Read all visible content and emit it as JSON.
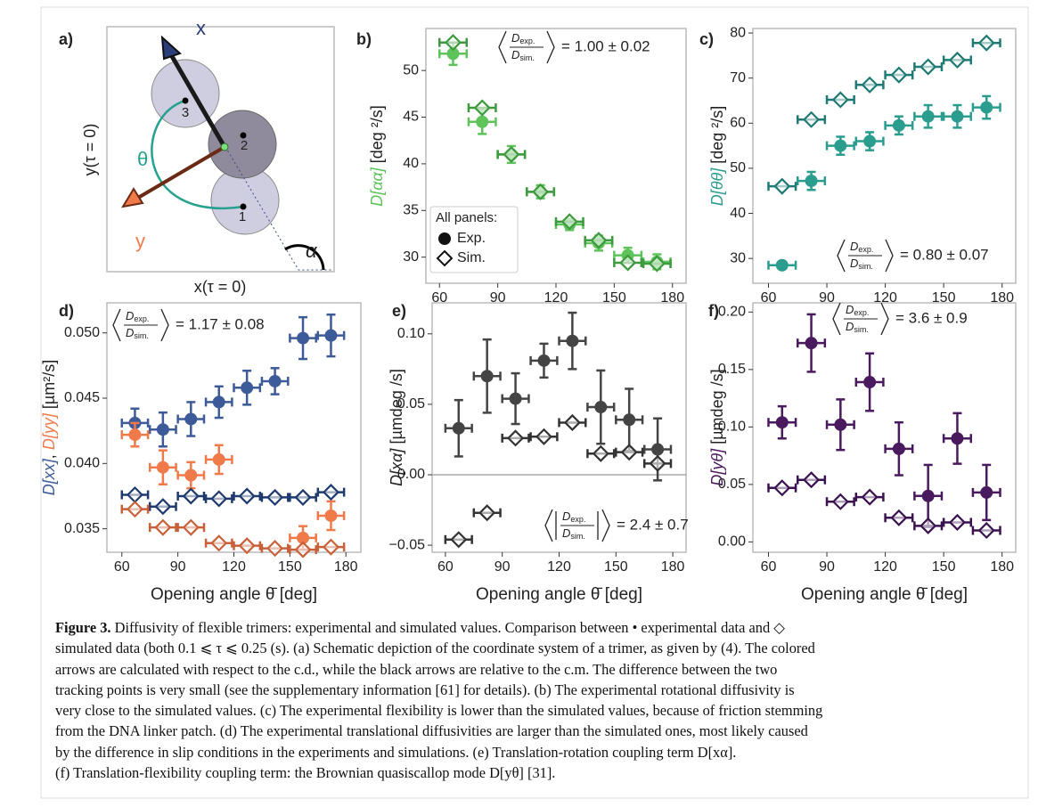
{
  "diagram": {
    "label": "a)",
    "axis_x": "x",
    "axis_y": "y",
    "angle_theta": "θ",
    "angle_alpha": "α",
    "particles": [
      "1",
      "2",
      "3"
    ],
    "ylabel": "y(τ = 0)",
    "xlabel": "x(τ = 0)"
  },
  "chart_data": [
    {
      "type": "scatter",
      "label": "b)",
      "x": [
        67,
        82,
        97,
        112,
        127,
        142,
        157,
        172
      ],
      "xlim": [
        53,
        187
      ],
      "xticks": [
        60,
        90,
        120,
        150,
        180
      ],
      "ylim": [
        27.2,
        54.5
      ],
      "yticks": [
        30,
        35,
        40,
        45,
        50
      ],
      "ylabel": [
        {
          "text": "D[αα]",
          "color": "#5ec35a"
        },
        {
          "text": " [deg ²/s]",
          "color": "#222222"
        }
      ],
      "annotation": {
        "symbol": "D",
        "num": "exp.",
        "den": "sim.",
        "value": "= 1.00 ± 0.02"
      },
      "legend": true,
      "legend_title": "All panels:",
      "series": [
        {
          "name": "Exp.",
          "marker": "o",
          "color": "#5ec35a",
          "values": [
            51.8,
            44.5,
            41.0,
            37.0,
            33.5,
            31.5,
            30.2,
            29.5
          ],
          "yerr": [
            1.2,
            1.3,
            0.9,
            0.7,
            0.6,
            0.8,
            0.8,
            0.8
          ],
          "xerr": [
            7,
            7,
            7,
            7,
            7,
            7,
            7,
            7
          ]
        },
        {
          "name": "Sim.",
          "marker": "d",
          "color": "#3e9a3e",
          "values": [
            53.0,
            46.0,
            41.0,
            37.0,
            33.8,
            31.8,
            29.4,
            29.3
          ],
          "xerr": [
            7,
            7,
            7,
            7,
            7,
            7,
            7,
            7
          ]
        }
      ]
    },
    {
      "type": "scatter",
      "label": "c)",
      "x": [
        67,
        82,
        97,
        112,
        127,
        142,
        157,
        172
      ],
      "xlim": [
        52,
        187
      ],
      "xticks": [
        60,
        90,
        120,
        150,
        180
      ],
      "ylim": [
        24.5,
        81
      ],
      "yticks": [
        30,
        40,
        50,
        60,
        70,
        80
      ],
      "ylabel": [
        {
          "text": "D[θθ]",
          "color": "#2a9d8f"
        },
        {
          "text": " [deg ²/s]",
          "color": "#222222"
        }
      ],
      "annotation": {
        "symbol": "D",
        "num": "exp.",
        "den": "sim.",
        "value": "= 0.80 ± 0.07"
      },
      "legend": false,
      "series": [
        {
          "marker": "o",
          "color": "#2a9d8f",
          "values": [
            28.5,
            47.2,
            55.0,
            56.0,
            59.5,
            61.5,
            61.5,
            63.5
          ],
          "yerr": [
            0.5,
            2.0,
            2.0,
            2.0,
            2.0,
            2.5,
            2.5,
            2.5
          ],
          "xerr": [
            7,
            7,
            7,
            7,
            7,
            7,
            7,
            7
          ]
        },
        {
          "marker": "d",
          "color": "#1f7a73",
          "values": [
            46.0,
            60.8,
            65.2,
            68.5,
            70.7,
            72.5,
            74.0,
            77.8
          ],
          "xerr": [
            7,
            7,
            7,
            7,
            7,
            7,
            7,
            7
          ]
        }
      ]
    },
    {
      "type": "scatter",
      "label": "d)",
      "x": [
        67,
        82,
        97,
        112,
        127,
        142,
        157,
        172
      ],
      "xlim": [
        52,
        188
      ],
      "xticks": [
        60,
        90,
        120,
        150,
        180
      ],
      "ylim": [
        0.0332,
        0.0523
      ],
      "yticks": [
        0.035,
        {
          "value": 0.04,
          "label": "0.040"
        },
        0.045,
        {
          "value": 0.05,
          "label": "0.050"
        }
      ],
      "ylabel": [
        {
          "text": "D[xx]",
          "color": "#3d5a99"
        },
        {
          "text": ", ",
          "color": "#222222"
        },
        {
          "text": "D[yy]",
          "color": "#f07a4a"
        },
        {
          "text": " [µm²/s]",
          "color": "#222222"
        }
      ],
      "xlabel": "Opening angle θ̄ [deg]",
      "annotation": {
        "symbol": "D",
        "num": "exp.",
        "den": "sim.",
        "value": "= 1.17 ± 0.08"
      },
      "legend": false,
      "series": [
        {
          "marker": "o",
          "color": "#3d5a99",
          "values": [
            0.0431,
            0.0426,
            0.0434,
            0.0447,
            0.0458,
            0.0463,
            0.0496,
            0.0498
          ],
          "yerr": [
            0.0011,
            0.0013,
            0.0013,
            0.0012,
            0.0013,
            0.001,
            0.0016,
            0.0016
          ],
          "xerr": [
            7,
            7,
            7,
            7,
            7,
            7,
            7,
            7
          ]
        },
        {
          "marker": "o",
          "color": "#f07a4a",
          "values": [
            0.0422,
            0.0397,
            0.0391,
            0.0403,
            null,
            null,
            0.0343,
            0.036
          ],
          "yerr": [
            0.0009,
            0.0013,
            0.001,
            0.0011,
            null,
            null,
            0.0009,
            0.0011
          ],
          "xerr": [
            7,
            7,
            7,
            7,
            null,
            null,
            7,
            7
          ]
        },
        {
          "marker": "d",
          "color": "#1f3a6e",
          "values": [
            0.0376,
            0.0367,
            0.0375,
            0.0373,
            0.0375,
            0.0374,
            0.0374,
            0.0378
          ],
          "xerr": [
            7,
            7,
            7,
            7,
            7,
            7,
            7,
            7
          ]
        },
        {
          "marker": "d",
          "color": "#c8603a",
          "values": [
            0.0365,
            0.0351,
            0.0351,
            0.0339,
            0.0337,
            0.0335,
            0.0334,
            0.0336
          ],
          "xerr": [
            7,
            7,
            7,
            7,
            7,
            7,
            7,
            7
          ]
        }
      ]
    },
    {
      "type": "scatter",
      "label": "e)",
      "x": [
        67,
        82,
        97,
        112,
        127,
        142,
        157,
        172
      ],
      "xlim": [
        53,
        187
      ],
      "xticks": [
        60,
        90,
        120,
        150,
        180
      ],
      "ylim": [
        -0.055,
        0.122
      ],
      "yticks": [
        {
          "value": -0.05,
          "label": "−0.05"
        },
        {
          "value": 0,
          "label": "0.00"
        },
        0.05,
        {
          "value": 0.1,
          "label": "0.10"
        }
      ],
      "hline": 0,
      "ylabel": [
        {
          "text": "D[xα]",
          "color": "#222222"
        },
        {
          "text": " [µmdeg /s]",
          "color": "#222222"
        }
      ],
      "xlabel": "Opening angle θ̄ [deg]",
      "annotation": {
        "symbol": "D",
        "num": "exp.",
        "den": "sim.",
        "value": "= 2.4 ± 0.7",
        "absolute": true
      },
      "legend": false,
      "series": [
        {
          "marker": "o",
          "color": "#444444",
          "values": [
            0.033,
            0.07,
            0.054,
            0.081,
            0.095,
            0.048,
            0.039,
            0.018
          ],
          "yerr": [
            0.02,
            0.026,
            0.018,
            0.012,
            0.02,
            0.026,
            0.022,
            0.022
          ],
          "xerr": [
            7,
            7,
            7,
            7,
            7,
            7,
            7,
            7
          ]
        },
        {
          "marker": "d",
          "color": "#333333",
          "values": [
            -0.046,
            -0.027,
            0.026,
            0.027,
            0.037,
            0.015,
            0.016,
            0.008
          ],
          "xerr": [
            7,
            7,
            7,
            7,
            7,
            7,
            7,
            7
          ]
        }
      ]
    },
    {
      "type": "scatter",
      "label": "f)",
      "x": [
        67,
        82,
        97,
        112,
        127,
        142,
        157,
        172
      ],
      "xlim": [
        52,
        187
      ],
      "xticks": [
        60,
        90,
        120,
        150,
        180
      ],
      "ylim": [
        -0.009,
        0.208
      ],
      "yticks": [
        {
          "value": 0,
          "label": "0.00"
        },
        0.05,
        {
          "value": 0.1,
          "label": "0.10"
        },
        0.15,
        {
          "value": 0.2,
          "label": "0.20"
        }
      ],
      "ylabel": [
        {
          "text": "D[yθ]",
          "color": "#4a1a5e"
        },
        {
          "text": " [µmdeg /s]",
          "color": "#222222"
        }
      ],
      "xlabel": "Opening angle θ̄ [deg]",
      "annotation": {
        "symbol": "D",
        "num": "exp.",
        "den": "sim.",
        "value": "= 3.6 ± 0.9"
      },
      "legend": false,
      "series": [
        {
          "marker": "o",
          "color": "#4a1a5e",
          "values": [
            0.104,
            0.173,
            0.102,
            0.139,
            0.081,
            0.04,
            0.09,
            0.043
          ],
          "yerr": [
            0.014,
            0.025,
            0.022,
            0.025,
            0.023,
            0.027,
            0.022,
            0.024
          ],
          "xerr": [
            7,
            7,
            7,
            7,
            7,
            7,
            7,
            7
          ]
        },
        {
          "marker": "d",
          "color": "#3a1250",
          "values": [
            0.047,
            0.054,
            0.035,
            0.039,
            0.021,
            0.014,
            0.017,
            0.01
          ],
          "xerr": [
            7,
            7,
            7,
            7,
            7,
            7,
            7,
            7
          ]
        }
      ]
    }
  ],
  "caption": {
    "label": "Figure 3.",
    "lines": [
      " Diffusivity of flexible trimers: experimental and simulated values. Comparison between • experimental data and ◇",
      "simulated data (both 0.1 ⩽ τ ⩽ 0.25 (s). (a) Schematic depiction of the coordinate system of a trimer, as given by (4). The colored",
      "arrows are calculated with respect to the c.d., while the black arrows are relative to the c.m. The difference between the two",
      "tracking points is very small (see the supplementary information [61] for details). (b) The experimental rotational diffusivity is",
      "very close to the simulated values. (c) The experimental flexibility is lower than the simulated values, because of friction stemming",
      "from the DNA linker patch. (d) The experimental translational diffusivities are larger than the simulated ones, most likely caused",
      "by the difference in slip conditions in the experiments and simulations. (e) Translation-rotation coupling term D[xα].",
      "(f) Translation-flexibility coupling term: the Brownian quasiscallop mode D[yθ] [31]."
    ]
  }
}
